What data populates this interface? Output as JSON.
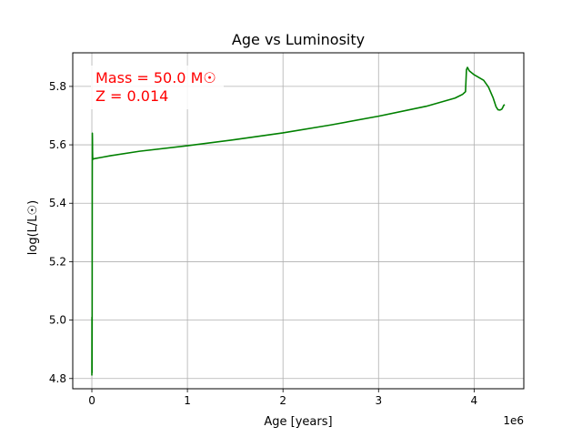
{
  "chart_data": {
    "type": "line",
    "title": "Age vs Luminosity",
    "xlabel": "Age [years]",
    "ylabel": "log(L/L☉)",
    "x_offset_label": "1e6",
    "xlim": [
      -200000,
      4520000
    ],
    "ylim": [
      4.765,
      5.915
    ],
    "x_ticks": [
      0,
      1000000,
      2000000,
      3000000,
      4000000
    ],
    "x_tick_labels": [
      "0",
      "1",
      "2",
      "3",
      "4"
    ],
    "y_ticks": [
      4.8,
      5.0,
      5.2,
      5.4,
      5.6,
      5.8
    ],
    "y_tick_labels": [
      "4.8",
      "5.0",
      "5.2",
      "5.4",
      "5.6",
      "5.8"
    ],
    "grid": true,
    "legend": "none",
    "annotations": [
      "Mass = 50.0 M☉",
      "Z = 0.014"
    ],
    "annotation_color": "#ff0000",
    "series": [
      {
        "color": "#008000",
        "x": [
          0,
          1000,
          2000,
          3000,
          4000,
          5000,
          6000,
          7000,
          8000,
          9000,
          10000,
          15000,
          20000,
          30000,
          50000,
          100000,
          200000,
          500000,
          1000000,
          1500000,
          2000000,
          2500000,
          3000000,
          3500000,
          3800000,
          3880000,
          3900000,
          3910000,
          3920000,
          3930000,
          3950000,
          4000000,
          4100000,
          4150000,
          4200000,
          4230000,
          4250000,
          4270000,
          4290000,
          4300000,
          4310000,
          4320000
        ],
        "y": [
          4.81,
          5.01,
          4.82,
          5.02,
          5.45,
          5.64,
          5.62,
          5.58,
          5.56,
          5.555,
          5.552,
          5.551,
          5.552,
          5.553,
          5.554,
          5.557,
          5.563,
          5.578,
          5.597,
          5.618,
          5.641,
          5.668,
          5.698,
          5.732,
          5.76,
          5.773,
          5.779,
          5.782,
          5.857,
          5.865,
          5.853,
          5.84,
          5.821,
          5.798,
          5.76,
          5.73,
          5.72,
          5.719,
          5.722,
          5.728,
          5.735,
          5.738
        ]
      }
    ]
  }
}
